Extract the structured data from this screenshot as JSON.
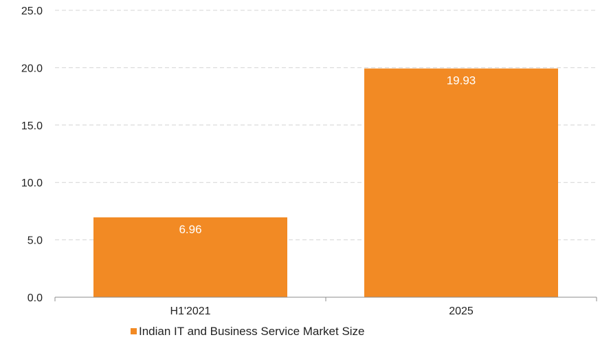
{
  "chart_data": {
    "type": "bar",
    "categories": [
      "H1'2021",
      "2025"
    ],
    "series": [
      {
        "name": "Indian IT and Business Service Market Size",
        "values": [
          6.96,
          19.93
        ],
        "data_labels": [
          "6.96",
          "19.93"
        ],
        "color": "#F28A24"
      }
    ],
    "y_ticks": [
      "0.0",
      "5.0",
      "10.0",
      "15.0",
      "20.0",
      "25.0"
    ],
    "ylim": [
      0,
      25
    ],
    "grid": true,
    "legend_position": "bottom-center",
    "title": "",
    "xlabel": "",
    "ylabel": ""
  },
  "colors": {
    "bar": "#F28A24",
    "gridline": "#d4d4d4",
    "axis": "#8c8c8c",
    "background": "#ffffff"
  }
}
